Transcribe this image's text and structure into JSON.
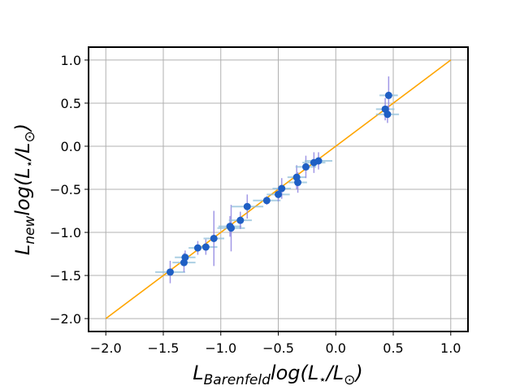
{
  "chart_data": {
    "type": "scatter",
    "title": "",
    "xlabel": {
      "base": "L",
      "sub": "Barenfeld",
      "rest": "log(L",
      "star": "⋆",
      "slash": "/L",
      "sun": "⊙",
      "close": ")"
    },
    "ylabel": {
      "base": "L",
      "sub": "new",
      "rest": "log(L",
      "star": "⋆",
      "slash": "/L",
      "sun": "⊙",
      "close": ")"
    },
    "xlim": [
      -2.15,
      1.15
    ],
    "ylim": [
      -2.15,
      1.15
    ],
    "xticks": [
      -2.0,
      -1.5,
      -1.0,
      -0.5,
      0.0,
      0.5,
      1.0
    ],
    "yticks": [
      -2.0,
      -1.5,
      -1.0,
      -0.5,
      0.0,
      0.5,
      1.0
    ],
    "xtick_labels": [
      "−2.0",
      "−1.5",
      "−1.0",
      "−0.5",
      "0.0",
      "0.5",
      "1.0"
    ],
    "ytick_labels": [
      "−2.0",
      "−1.5",
      "−1.0",
      "−0.5",
      "0.0",
      "0.5",
      "1.0"
    ],
    "grid": true,
    "one_to_one_line": {
      "x": [
        -2.0,
        1.0
      ],
      "y": [
        -2.0,
        1.0
      ],
      "color": "#ffa500"
    },
    "colors": {
      "point": "#1f5fc4",
      "xerr": "#8fbfd9",
      "yerr": "#8a7ee0"
    },
    "points": [
      {
        "x": -1.44,
        "y": -1.46,
        "xerr": 0.13,
        "yerr": 0.13
      },
      {
        "x": -1.32,
        "y": -1.35,
        "xerr": 0.1,
        "yerr": 0.11
      },
      {
        "x": -1.31,
        "y": -1.29,
        "xerr": 0.09,
        "yerr": 0.08
      },
      {
        "x": -1.2,
        "y": -1.18,
        "xerr": 0.08,
        "yerr": 0.08
      },
      {
        "x": -1.13,
        "y": -1.17,
        "xerr": 0.1,
        "yerr": 0.09
      },
      {
        "x": -1.06,
        "y": -1.07,
        "xerr": 0.09,
        "yerr": 0.32
      },
      {
        "x": -0.92,
        "y": -0.93,
        "xerr": 0.1,
        "yerr": 0.12
      },
      {
        "x": -0.91,
        "y": -0.95,
        "xerr": 0.12,
        "yerr": 0.27
      },
      {
        "x": -0.83,
        "y": -0.86,
        "xerr": 0.1,
        "yerr": 0.1
      },
      {
        "x": -0.77,
        "y": -0.7,
        "xerr": 0.14,
        "yerr": 0.14
      },
      {
        "x": -0.6,
        "y": -0.63,
        "xerr": 0.12,
        "yerr": 0.05
      },
      {
        "x": -0.5,
        "y": -0.56,
        "xerr": 0.1,
        "yerr": 0.08
      },
      {
        "x": -0.47,
        "y": -0.49,
        "xerr": 0.08,
        "yerr": 0.12
      },
      {
        "x": -0.34,
        "y": -0.36,
        "xerr": 0.08,
        "yerr": 0.14
      },
      {
        "x": -0.33,
        "y": -0.42,
        "xerr": 0.08,
        "yerr": 0.12
      },
      {
        "x": -0.26,
        "y": -0.24,
        "xerr": 0.09,
        "yerr": 0.13
      },
      {
        "x": -0.19,
        "y": -0.19,
        "xerr": 0.1,
        "yerr": 0.12
      },
      {
        "x": -0.15,
        "y": -0.17,
        "xerr": 0.12,
        "yerr": 0.1
      },
      {
        "x": 0.43,
        "y": 0.43,
        "xerr": 0.08,
        "yerr": 0.13
      },
      {
        "x": 0.45,
        "y": 0.37,
        "xerr": 0.1,
        "yerr": 0.1
      },
      {
        "x": 0.46,
        "y": 0.59,
        "xerr": 0.08,
        "yerr": 0.22
      }
    ]
  }
}
